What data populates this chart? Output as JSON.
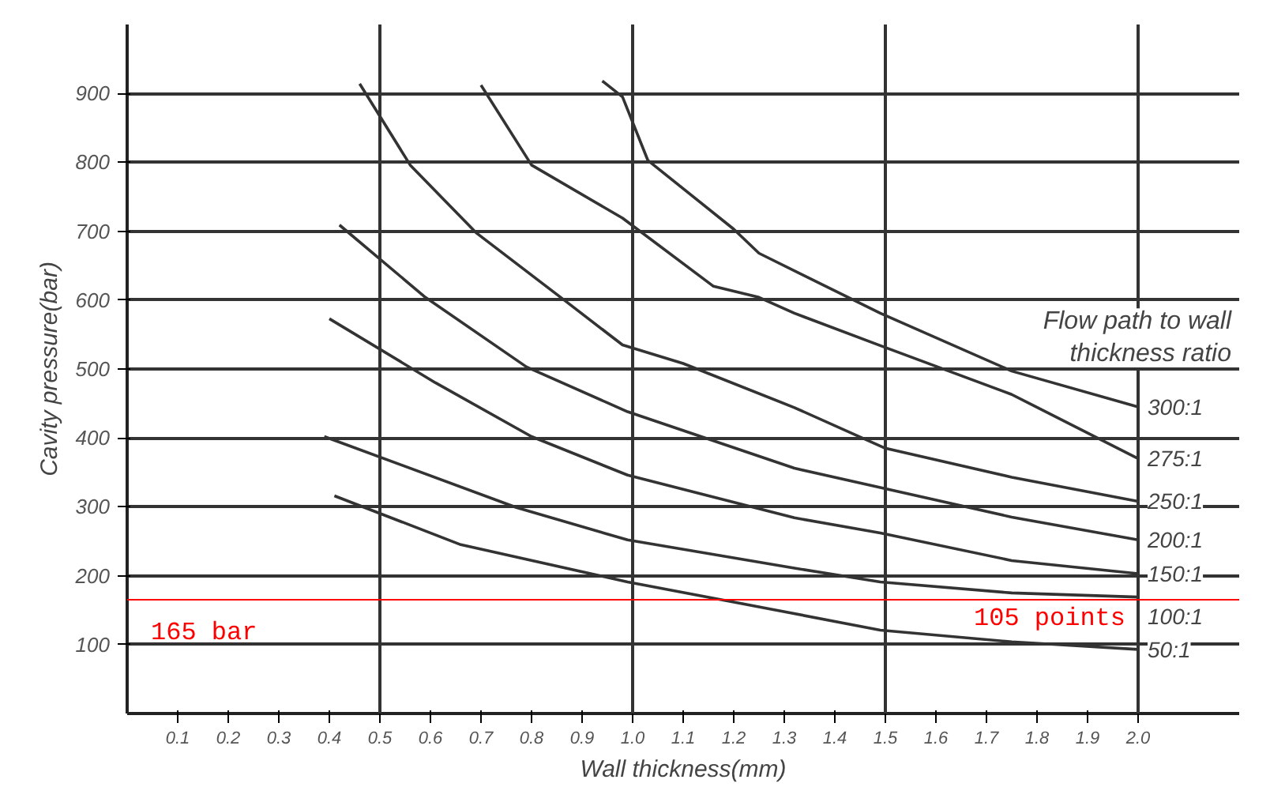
{
  "chart_data": {
    "type": "line",
    "xlabel": "Wall thickness(mm)",
    "ylabel": "Cavity pressure(bar)",
    "legend_title": "Flow path to wall\nthickness ratio",
    "xlim": [
      0,
      2.2
    ],
    "ylim": [
      0,
      1000
    ],
    "xticks": [
      0.1,
      0.2,
      0.3,
      0.4,
      0.5,
      0.6,
      0.7,
      0.8,
      0.9,
      {
        "value": 1.0,
        "label": "1.0"
      },
      1.1,
      1.2,
      1.3,
      1.4,
      1.5,
      1.6,
      1.7,
      1.8,
      1.9,
      {
        "value": 2.0,
        "label": "2.0"
      }
    ],
    "yticks": [
      100,
      200,
      300,
      400,
      500,
      600,
      700,
      800,
      900
    ],
    "grid": "y",
    "marker": "none",
    "line_style": "solid",
    "series": [
      {
        "name": "300:1",
        "color": "#333333",
        "x": [
          0.94,
          0.98,
          1.03,
          1.2,
          1.25,
          1.49,
          1.75,
          2.0
        ],
        "values": [
          918,
          895,
          803,
          703,
          668,
          581,
          497,
          445
        ]
      },
      {
        "name": "275:1",
        "color": "#333333",
        "x": [
          0.7,
          0.8,
          0.98,
          1.16,
          1.25,
          1.32,
          1.49,
          1.75,
          2.0
        ],
        "values": [
          912,
          796,
          719,
          620,
          604,
          581,
          534,
          463,
          370
        ]
      },
      {
        "name": "250:1",
        "color": "#333333",
        "x": [
          0.46,
          0.56,
          0.69,
          0.87,
          0.98,
          1.1,
          1.32,
          1.5,
          1.75,
          2.0
        ],
        "values": [
          914,
          796,
          698,
          597,
          535,
          508,
          444,
          385,
          343,
          308
        ]
      },
      {
        "name": "200:1",
        "color": "#333333",
        "x": [
          0.42,
          0.59,
          0.79,
          0.99,
          1.32,
          1.49,
          1.75,
          2.0
        ],
        "values": [
          709,
          604,
          503,
          438,
          356,
          328,
          285,
          252
        ]
      },
      {
        "name": "150:1",
        "color": "#333333",
        "x": [
          0.4,
          0.61,
          0.8,
          0.99,
          1.32,
          1.49,
          1.75,
          2.0
        ],
        "values": [
          573,
          480,
          402,
          346,
          284,
          262,
          222,
          203
        ]
      },
      {
        "name": "100:1",
        "color": "#333333",
        "x": [
          0.39,
          0.77,
          0.99,
          1.32,
          1.49,
          1.75,
          2.0
        ],
        "values": [
          402,
          299,
          252,
          211,
          191,
          175,
          169
        ]
      },
      {
        "name": "50:1",
        "color": "#333333",
        "x": [
          0.41,
          0.66,
          0.99,
          1.27,
          1.49,
          1.75,
          2.0
        ],
        "values": [
          316,
          245,
          191,
          152,
          121,
          104,
          93
        ]
      }
    ],
    "ref_lines": [
      {
        "axis": "x",
        "value": 0.5,
        "color": "#333333"
      },
      {
        "axis": "x",
        "value": 1.0,
        "color": "#333333"
      },
      {
        "axis": "x",
        "value": 1.5,
        "color": "#333333"
      },
      {
        "axis": "x",
        "value": 2.0,
        "color": "#333333"
      },
      {
        "axis": "y",
        "value": 165,
        "label": "165 bar",
        "color": "#ff0000"
      }
    ],
    "annotations": [
      "105 points"
    ]
  }
}
